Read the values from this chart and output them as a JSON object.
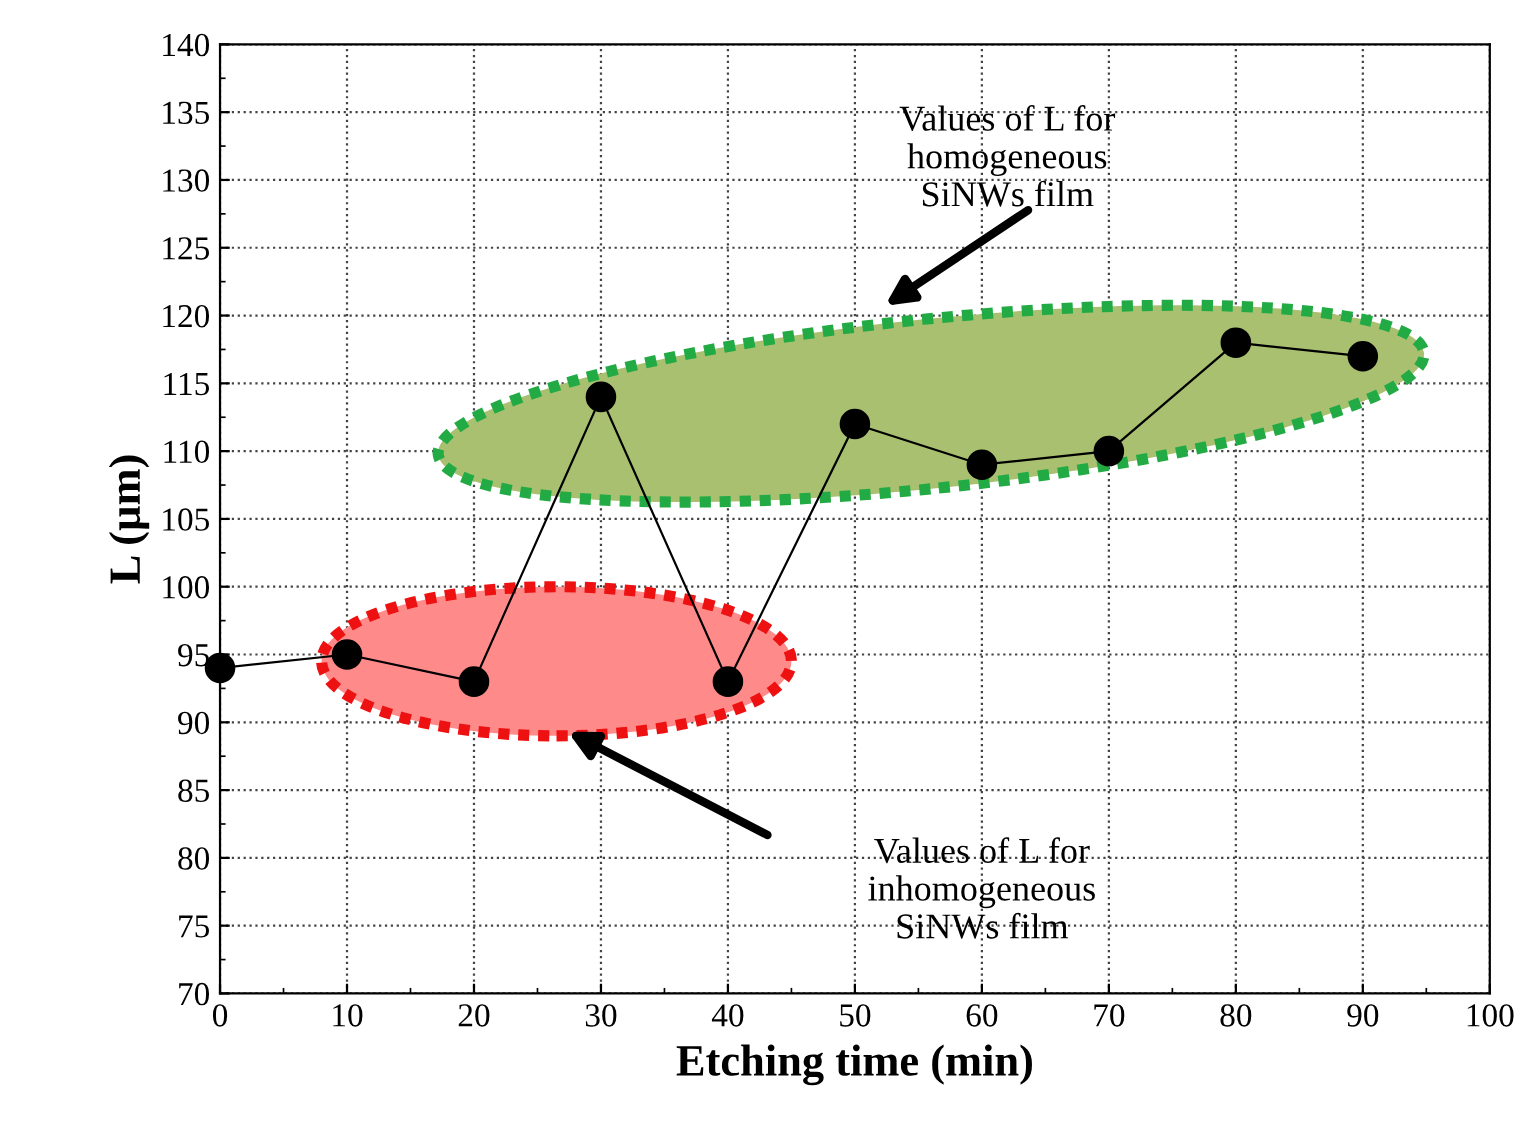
{
  "chart_data": {
    "type": "line",
    "xlabel": "Etching time (min)",
    "ylabel": "L (µm)",
    "x": [
      0,
      10,
      20,
      30,
      40,
      50,
      60,
      70,
      80,
      90
    ],
    "series": [
      {
        "color": "#000000",
        "values": [
          94,
          95,
          93,
          114,
          93,
          112,
          109,
          110,
          118,
          117
        ]
      }
    ],
    "xlim": [
      0,
      100
    ],
    "xticks": [
      0,
      10,
      20,
      30,
      40,
      50,
      60,
      70,
      80,
      90,
      100
    ],
    "ylim": [
      70,
      140
    ],
    "yticks": [
      70,
      75,
      80,
      85,
      90,
      95,
      100,
      105,
      110,
      115,
      120,
      125,
      130,
      135,
      140
    ],
    "grid": true,
    "marker": "circle",
    "line_style": "solid",
    "legend": false,
    "annotations": [
      "Values of L for\nhomogeneous\nSiNWs film",
      "Values of L for\ninhomogeneous\nSiNWs film"
    ]
  }
}
